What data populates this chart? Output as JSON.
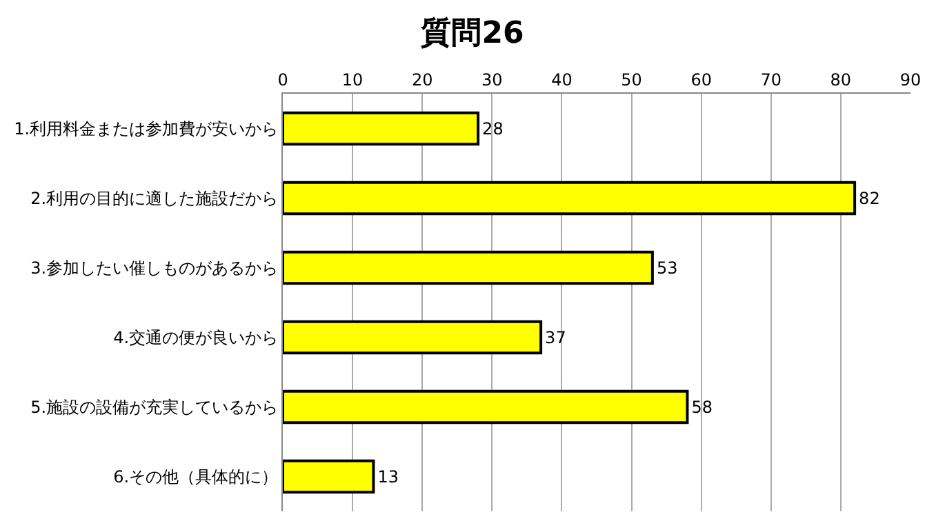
{
  "chart_data": {
    "type": "bar",
    "orientation": "horizontal",
    "title": "質問26",
    "categories": [
      "1.利用料金または参加費が安いから",
      "2.利用の目的に適した施設だから",
      "3.参加したい催しものがあるから",
      "4.交通の便が良いから",
      "5.施設の設備が充実しているから",
      "6.その他（具体的に）"
    ],
    "values": [
      28,
      82,
      53,
      37,
      58,
      13
    ],
    "color": "#ffff00",
    "xlim": [
      0,
      90
    ],
    "xticks": [
      0,
      10,
      20,
      30,
      40,
      50,
      60,
      70,
      80,
      90
    ],
    "grid": "x",
    "data_labels": true,
    "legend": false
  }
}
